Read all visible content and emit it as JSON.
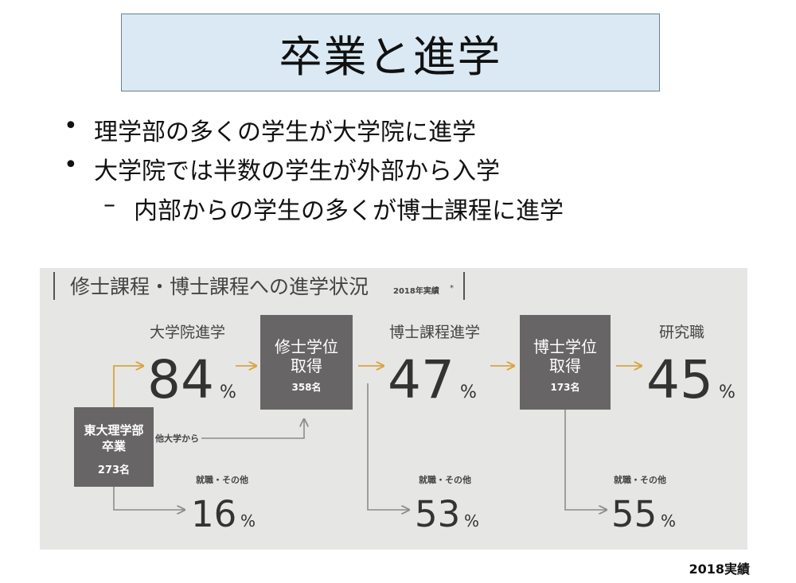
{
  "slide": {
    "title": "卒業と進学",
    "bullets": [
      {
        "marker": "•",
        "text": "理学部の多くの学生が大学院に進学"
      },
      {
        "marker": "•",
        "text": "大学院では半数の学生が外部から入学"
      },
      {
        "marker": "–",
        "text": "内部からの学生の多くが博士課程に進学"
      }
    ],
    "footnote": "2018実績"
  },
  "diagram": {
    "heading": "修士課程・博士課程への進学状況",
    "heading_note": "2018年実績",
    "heading_mark": "*",
    "percent_sign": "%",
    "colors": {
      "accent": "#d9a441",
      "box": "#676565",
      "line": "#8c8c8c",
      "panel": "#e6e6e5",
      "number": "#333333"
    },
    "undergrad_box": {
      "line1": "東大理学部",
      "line2": "卒業",
      "count": "273名"
    },
    "master_box": {
      "line1": "修士学位",
      "line2": "取得",
      "count": "358名"
    },
    "doctor_box": {
      "line1": "博士学位",
      "line2": "取得",
      "count": "173名"
    },
    "grad_school": {
      "label": "大学院進学",
      "value": "84"
    },
    "doctoral": {
      "label": "博士課程進学",
      "value": "47"
    },
    "researcher": {
      "label": "研究職",
      "value": "45"
    },
    "other_univ": {
      "label": "他大学から"
    },
    "job_after_undergrad": {
      "label": "就職・その他",
      "value": "16"
    },
    "job_after_master": {
      "label": "就職・その他",
      "value": "53"
    },
    "job_after_doctor": {
      "label": "就職・その他",
      "value": "55"
    }
  }
}
